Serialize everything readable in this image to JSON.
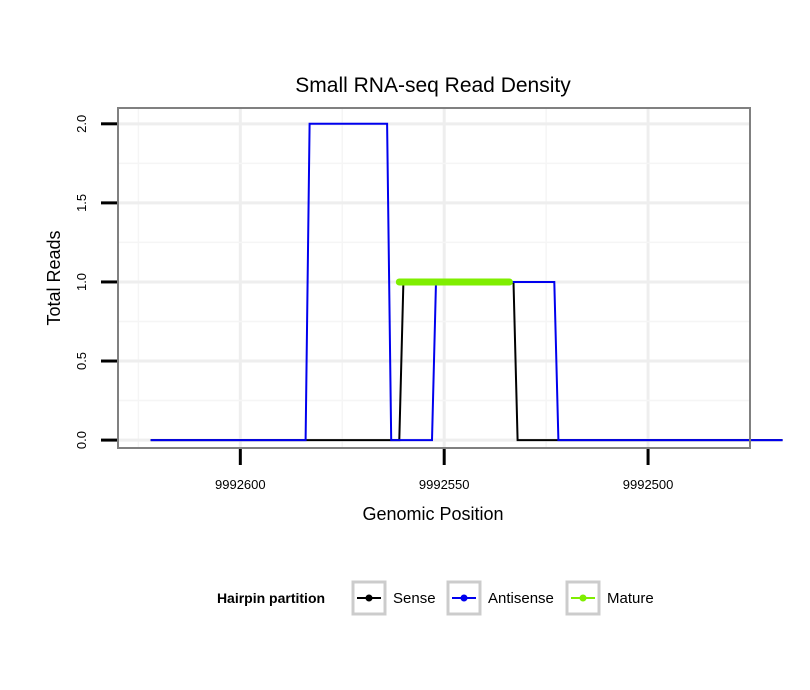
{
  "chart_data": {
    "type": "line",
    "title": "Small RNA-seq Read Density",
    "xlabel": "Genomic Position",
    "ylabel": "Total Reads",
    "xlim_reversed": [
      9992630,
      9992475
    ],
    "ylim": [
      -0.05,
      2.1
    ],
    "x_ticks": [
      {
        "value": 9992600,
        "label": "9992600"
      },
      {
        "value": 9992550,
        "label": "9992550"
      },
      {
        "value": 9992500,
        "label": "9992500"
      }
    ],
    "y_ticks": [
      {
        "value": 0,
        "label": "0.0"
      },
      {
        "value": 0.5,
        "label": "0.5"
      },
      {
        "value": 1,
        "label": "1.0"
      },
      {
        "value": 1.5,
        "label": "1.5"
      },
      {
        "value": 2,
        "label": "2.0"
      }
    ],
    "legend": {
      "title": "Hairpin partition",
      "position": "bottom",
      "entries": [
        "Sense",
        "Antisense",
        "Mature"
      ]
    },
    "series": [
      {
        "name": "Sense",
        "color": "#000000",
        "points": [
          [
            9992622,
            0
          ],
          [
            9992561,
            0
          ],
          [
            9992560,
            1
          ],
          [
            9992533,
            1
          ],
          [
            9992532,
            0
          ],
          [
            9992467,
            0
          ]
        ]
      },
      {
        "name": "Antisense",
        "color": "#0000ee",
        "points": [
          [
            9992622,
            0
          ],
          [
            9992584,
            0
          ],
          [
            9992583,
            2
          ],
          [
            9992564,
            2
          ],
          [
            9992563,
            0
          ],
          [
            9992553,
            0
          ],
          [
            9992552,
            1
          ],
          [
            9992533,
            1
          ],
          [
            9992533,
            1
          ],
          [
            9992523,
            1
          ],
          [
            9992522,
            0
          ],
          [
            9992467,
            0
          ]
        ]
      },
      {
        "name": "Mature",
        "color": "#7fee00",
        "points": [
          [
            9992561,
            1
          ],
          [
            9992534,
            1
          ]
        ]
      }
    ]
  }
}
